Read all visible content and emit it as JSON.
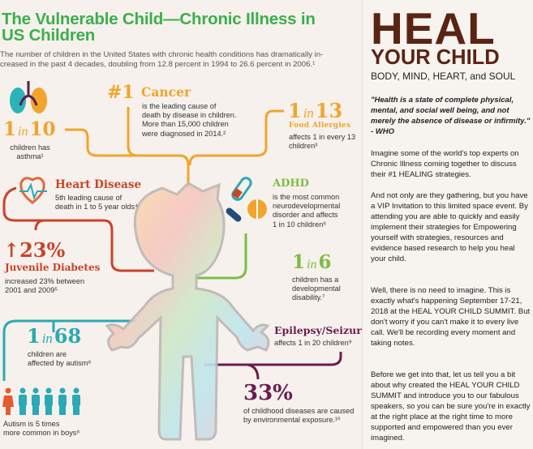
{
  "infographic": {
    "title_line1": "The Vulnerable Child—Chronic Illness in",
    "title_line2": "US Children",
    "subtitle_line1": "The number of children in the United States with chronic health conditions has dramatically in-",
    "subtitle_line2": "creased in the past 4 decades, doubling from 12.8 percent in 1994 to 26.6 percent in 2006.¹",
    "asthma": {
      "num1": "1",
      "in": "in",
      "num2": "10",
      "text_line1": "children has",
      "text_line2": "asthma¹"
    },
    "cancer": {
      "rank": "#1",
      "heading": "Cancer",
      "lines": [
        "is the leading cause of",
        "death by disease in children.",
        "More than 15,000 children",
        "were diagnosed in 2014.²"
      ]
    },
    "allergies": {
      "num1": "1",
      "in": "in",
      "num2": "13",
      "heading": "Food Allergies",
      "lines": [
        "affects 1 in every 13",
        "children³"
      ]
    },
    "heart": {
      "heading": "Heart Disease",
      "lines": [
        "5th leading cause of",
        "death in 1 to 5 year olds⁴"
      ]
    },
    "diabetes": {
      "stat": "↑23%",
      "heading": "Juvenile Diabetes",
      "lines": [
        "increased 23% between",
        "2001 and 2009⁵"
      ]
    },
    "adhd": {
      "heading": "ADHD",
      "lines": [
        "is the most common",
        "neurodevelopmental",
        "disorder and affects",
        "1 in 10 children⁶"
      ]
    },
    "developmental": {
      "num1": "1",
      "in": "in",
      "num2": "6",
      "lines": [
        "children has a",
        "developmental",
        "disability.⁷"
      ]
    },
    "autism": {
      "num1": "1",
      "in": "in",
      "num2": "68",
      "lines": [
        "children are",
        "affected by autism⁸"
      ],
      "boys_lines": [
        "Autism is 5 times",
        "more common in boys⁸"
      ]
    },
    "epilepsy": {
      "heading": "Epilepsy/Seizure",
      "text": "affects 1 in 20 children⁹"
    },
    "environment": {
      "stat": "33%",
      "lines": [
        "of childhood diseases are caused",
        "by environmental exposure.¹⁰"
      ]
    },
    "colors": {
      "green": "#3cae4c",
      "orange": "#f0a52c",
      "red": "#c9432a",
      "lime": "#7cbd44",
      "teal": "#2aa9b6",
      "purple": "#6a1d50"
    }
  },
  "panel": {
    "heal": "HEAL",
    "your_child": "YOUR CHILD",
    "tagline": "BODY, MIND, HEART, and SOUL",
    "quote": "\"Health is a state of complete physical, mental, and social well being, and not merely the absence of disease or infirmity.\" - WHO",
    "paragraphs": [
      "Imagine some of the world's top experts on Chronic Illness coming together to discuss their #1 HEALING strategies.",
      "And not only are they gathering, but you have a VIP Invitation to this limited space event. By attending you are able to quickly and easily implement their strategies for Empowering yourself with strategies, resources and evidence based research to help you heal your child.",
      "Well, there is no need to imagine. This is exactly what's happening September 17-21, 2018 at the HEAL YOUR CHILD SUMMIT. But don't worry if you can't make it to every live call. We'll be recording every moment and taking notes.",
      "Before we get into that, let us tell you a bit about why created the HEAL YOUR CHILD SUMMIT and introduce you to our fabulous speakers, so you can be sure you're in exactly at the right place at the right time to more supported and empowered than you ever imagined."
    ],
    "brand_color": "#5a2413"
  }
}
